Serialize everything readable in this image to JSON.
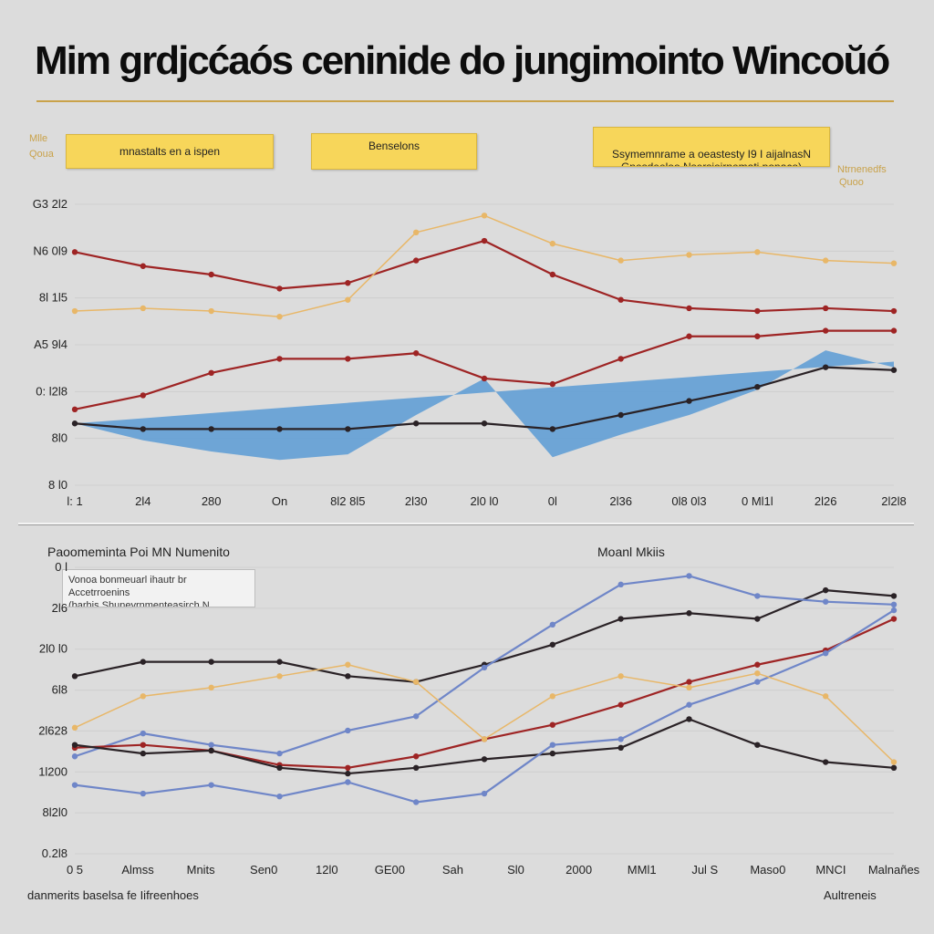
{
  "title": "Mim grdjcćaós ceninide do jungimointo Wincoŭó",
  "top_panel": {
    "callouts": [
      "mnastalts en a ispen",
      "Benselons",
      "Ssymemnrame a oeastesty I9 I aijalnasN\nGnesdeeloo Nsersioirnemati ponaco)"
    ],
    "side_labels_left": [
      "Mlle",
      "Qoua"
    ],
    "side_labels_right": [
      "Ntrnenedfs",
      "Quoo"
    ]
  },
  "bottom_panel": {
    "subtitle_left": "Paoomeminta Poi MN Numenito",
    "subtitle_right": "Moanl Mkiis",
    "legend_lines": [
      "Vonoa bonmeuarl ihautr br Accetrroenins",
      "(barhis Shuneyrnmenteasirch N"
    ],
    "footer_left": "danmerits baselsa fe Iifreenhoes",
    "footer_right": "Aultreneis"
  },
  "colors": {
    "red": "#9e2424",
    "dark": "#2a2226",
    "blue": "#5b9bd5",
    "blue_line": "#6f86c8",
    "gold": "#e8b768",
    "callout": "#f7d65a"
  },
  "chart_data": [
    {
      "type": "line",
      "title": "Mim grdjcćaós ceninide do jungimointo Wincoŭó",
      "y_tick_labels": [
        "G3 2l2",
        "N6 0l9",
        "8l 1l5",
        "A5 9l4",
        "0: l2l8",
        "8l0",
        "8 l0"
      ],
      "x_tick_labels": [
        "l: 1",
        "2l4",
        "280",
        "On",
        "8l2 8l5",
        "2l30",
        "2l0 l0",
        "0l",
        "2l36",
        "0l8 0l3",
        "0 Ml1l",
        "2l26",
        "2l2l8"
      ],
      "ylim": [
        0,
        100
      ],
      "x": [
        0,
        1,
        2,
        3,
        4,
        5,
        6,
        7,
        8,
        9,
        10,
        11,
        12
      ],
      "series": [
        {
          "kind": "line",
          "color": "red",
          "values": [
            83,
            78,
            75,
            70,
            72,
            80,
            87,
            75,
            66,
            63,
            62,
            63,
            62
          ]
        },
        {
          "kind": "line",
          "color": "red",
          "values": [
            27,
            32,
            40,
            45,
            45,
            47,
            38,
            36,
            45,
            53,
            53,
            55,
            55
          ]
        },
        {
          "kind": "line",
          "color": "gold",
          "values": [
            62,
            63,
            62,
            60,
            66,
            90,
            96,
            86,
            80,
            82,
            83,
            80,
            79
          ]
        },
        {
          "kind": "line",
          "color": "dark",
          "values": [
            22,
            20,
            20,
            20,
            20,
            22,
            22,
            20,
            25,
            30,
            35,
            42,
            41
          ]
        },
        {
          "kind": "area",
          "color": "blue",
          "values": [
            22,
            16,
            12,
            9,
            11,
            25,
            38,
            10,
            18,
            25,
            34,
            48,
            42
          ]
        }
      ]
    },
    {
      "type": "line",
      "y_tick_labels": [
        "0 l",
        "2l6",
        "2l0 l0",
        "6l8",
        "2l628",
        "1l200",
        "8l2l0",
        "0.2l8"
      ],
      "x_tick_labels": [
        "0 5",
        "Almss",
        "Mnits",
        "Sen0",
        "12l0",
        "GE00",
        "Sah",
        "Sl0",
        "2000",
        "MMl1",
        "Jul S",
        "Maso0",
        "MNCI",
        "Malnañes"
      ],
      "ylim": [
        0,
        100
      ],
      "x": [
        0,
        1,
        2,
        3,
        4,
        5,
        6,
        7,
        8,
        9,
        10,
        11,
        12
      ],
      "series": [
        {
          "kind": "line",
          "color": "dark",
          "values": [
            62,
            67,
            67,
            67,
            62,
            60,
            66,
            73,
            82,
            84,
            82,
            92,
            90
          ]
        },
        {
          "kind": "line",
          "color": "blue_line",
          "values": [
            34,
            42,
            38,
            35,
            43,
            48,
            65,
            80,
            94,
            97,
            90,
            88,
            87
          ]
        },
        {
          "kind": "line",
          "color": "red",
          "values": [
            37,
            38,
            36,
            31,
            30,
            34,
            40,
            45,
            52,
            60,
            66,
            71,
            82
          ]
        },
        {
          "kind": "line",
          "color": "dark",
          "values": [
            38,
            35,
            36,
            30,
            28,
            30,
            33,
            35,
            37,
            47,
            38,
            32,
            30
          ]
        },
        {
          "kind": "line",
          "color": "blue_line",
          "values": [
            24,
            21,
            24,
            20,
            25,
            18,
            21,
            38,
            40,
            52,
            60,
            70,
            85
          ]
        },
        {
          "kind": "line",
          "color": "gold",
          "values": [
            44,
            55,
            58,
            62,
            66,
            60,
            40,
            55,
            62,
            58,
            63,
            55,
            32
          ]
        }
      ]
    }
  ]
}
